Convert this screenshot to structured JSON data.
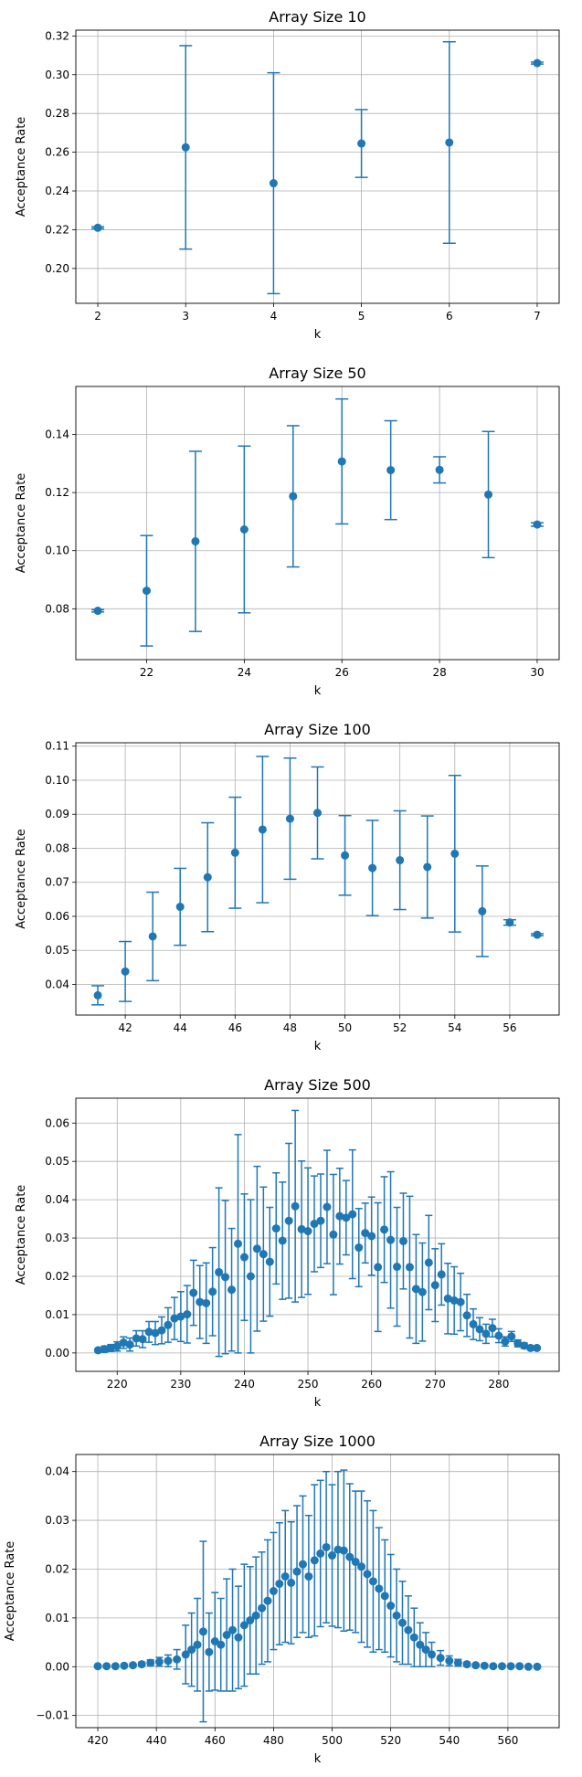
{
  "chart_data": [
    {
      "type": "scatter",
      "title": "Array Size 10",
      "xlabel": "k",
      "ylabel": "Acceptance Rate",
      "xlim": [
        1.75,
        7.25
      ],
      "ylim": [
        0.182,
        0.323
      ],
      "xticks": [
        2,
        3,
        4,
        5,
        6,
        7
      ],
      "yticks": [
        0.2,
        0.22,
        0.24,
        0.26,
        0.28,
        0.3,
        0.32
      ],
      "ytick_decimals": 2,
      "grid": true,
      "color": "#1f77b4",
      "points": [
        {
          "x": 2,
          "y": 0.221,
          "err": 0.0005
        },
        {
          "x": 3,
          "y": 0.2625,
          "err": 0.0525
        },
        {
          "x": 4,
          "y": 0.244,
          "err": 0.057
        },
        {
          "x": 5,
          "y": 0.2645,
          "err": 0.0175
        },
        {
          "x": 6,
          "y": 0.265,
          "err": 0.052
        },
        {
          "x": 7,
          "y": 0.306,
          "err": 0.0005
        }
      ]
    },
    {
      "type": "scatter",
      "title": "Array Size 50",
      "xlabel": "k",
      "ylabel": "Acceptance Rate",
      "xlim": [
        20.55,
        30.45
      ],
      "ylim": [
        0.0625,
        0.1565
      ],
      "xticks": [
        22,
        24,
        26,
        28,
        30
      ],
      "yticks": [
        0.08,
        0.1,
        0.12,
        0.14
      ],
      "ytick_decimals": 2,
      "grid": true,
      "color": "#1f77b4",
      "points": [
        {
          "x": 21,
          "y": 0.0793,
          "err": 0.0004
        },
        {
          "x": 22,
          "y": 0.0862,
          "err": 0.019
        },
        {
          "x": 23,
          "y": 0.1032,
          "err": 0.031
        },
        {
          "x": 24,
          "y": 0.1073,
          "err": 0.0287
        },
        {
          "x": 25,
          "y": 0.1187,
          "err": 0.0243
        },
        {
          "x": 26,
          "y": 0.1307,
          "err": 0.0215
        },
        {
          "x": 27,
          "y": 0.1277,
          "err": 0.017
        },
        {
          "x": 28,
          "y": 0.1278,
          "err": 0.0045
        },
        {
          "x": 29,
          "y": 0.1193,
          "err": 0.0217
        },
        {
          "x": 30,
          "y": 0.109,
          "err": 0.0006
        }
      ]
    },
    {
      "type": "scatter",
      "title": "Array Size 100",
      "xlabel": "k",
      "ylabel": "Acceptance Rate",
      "xlim": [
        40.2,
        57.8
      ],
      "ylim": [
        0.031,
        0.111
      ],
      "xticks": [
        42,
        44,
        46,
        48,
        50,
        52,
        54,
        56
      ],
      "yticks": [
        0.04,
        0.05,
        0.06,
        0.07,
        0.08,
        0.09,
        0.1,
        0.11
      ],
      "ytick_decimals": 2,
      "grid": true,
      "color": "#1f77b4",
      "points": [
        {
          "x": 41,
          "y": 0.0368,
          "err": 0.0028
        },
        {
          "x": 42,
          "y": 0.0438,
          "err": 0.0088
        },
        {
          "x": 43,
          "y": 0.0541,
          "err": 0.013
        },
        {
          "x": 44,
          "y": 0.0628,
          "err": 0.0113
        },
        {
          "x": 45,
          "y": 0.0715,
          "err": 0.016
        },
        {
          "x": 46,
          "y": 0.0787,
          "err": 0.0163
        },
        {
          "x": 47,
          "y": 0.0855,
          "err": 0.0215
        },
        {
          "x": 48,
          "y": 0.0887,
          "err": 0.0178
        },
        {
          "x": 49,
          "y": 0.0904,
          "err": 0.0135
        },
        {
          "x": 50,
          "y": 0.0779,
          "err": 0.0117
        },
        {
          "x": 51,
          "y": 0.0742,
          "err": 0.014
        },
        {
          "x": 52,
          "y": 0.0765,
          "err": 0.0145
        },
        {
          "x": 53,
          "y": 0.0745,
          "err": 0.015
        },
        {
          "x": 54,
          "y": 0.0784,
          "err": 0.023
        },
        {
          "x": 55,
          "y": 0.0615,
          "err": 0.0133
        },
        {
          "x": 56,
          "y": 0.0582,
          "err": 0.0008
        },
        {
          "x": 57,
          "y": 0.0546,
          "err": 0.0003
        }
      ]
    },
    {
      "type": "scatter",
      "title": "Array Size 500",
      "xlabel": "k",
      "ylabel": "Acceptance Rate",
      "xlim": [
        213.5,
        289.5
      ],
      "ylim": [
        -0.0048,
        0.0665
      ],
      "xticks": [
        220,
        230,
        240,
        250,
        260,
        270,
        280
      ],
      "yticks": [
        0.0,
        0.01,
        0.02,
        0.03,
        0.04,
        0.05,
        0.06
      ],
      "ytick_decimals": 2,
      "grid": true,
      "color": "#1f77b4",
      "points": [
        {
          "x": 217,
          "y": 0.0007,
          "err": 0.0004
        },
        {
          "x": 218,
          "y": 0.001,
          "err": 0.0008
        },
        {
          "x": 219,
          "y": 0.0013,
          "err": 0.0009
        },
        {
          "x": 220,
          "y": 0.0017,
          "err": 0.0012
        },
        {
          "x": 221,
          "y": 0.0027,
          "err": 0.0015
        },
        {
          "x": 222,
          "y": 0.0022,
          "err": 0.0017
        },
        {
          "x": 223,
          "y": 0.0038,
          "err": 0.002
        },
        {
          "x": 224,
          "y": 0.0036,
          "err": 0.0022
        },
        {
          "x": 225,
          "y": 0.0055,
          "err": 0.0027
        },
        {
          "x": 226,
          "y": 0.0052,
          "err": 0.003
        },
        {
          "x": 227,
          "y": 0.0059,
          "err": 0.0035
        },
        {
          "x": 228,
          "y": 0.0073,
          "err": 0.0045
        },
        {
          "x": 229,
          "y": 0.009,
          "err": 0.0055
        },
        {
          "x": 230,
          "y": 0.0095,
          "err": 0.0065
        },
        {
          "x": 231,
          "y": 0.0101,
          "err": 0.0075
        },
        {
          "x": 232,
          "y": 0.0157,
          "err": 0.0085
        },
        {
          "x": 233,
          "y": 0.0133,
          "err": 0.0095
        },
        {
          "x": 234,
          "y": 0.013,
          "err": 0.0105
        },
        {
          "x": 235,
          "y": 0.016,
          "err": 0.0115
        },
        {
          "x": 236,
          "y": 0.0211,
          "err": 0.022
        },
        {
          "x": 237,
          "y": 0.0198,
          "err": 0.02
        },
        {
          "x": 238,
          "y": 0.0165,
          "err": 0.016
        },
        {
          "x": 239,
          "y": 0.0285,
          "err": 0.0285
        },
        {
          "x": 240,
          "y": 0.025,
          "err": 0.0165
        },
        {
          "x": 241,
          "y": 0.02,
          "err": 0.02
        },
        {
          "x": 242,
          "y": 0.0272,
          "err": 0.0215
        },
        {
          "x": 243,
          "y": 0.0258,
          "err": 0.0175
        },
        {
          "x": 244,
          "y": 0.0238,
          "err": 0.0142
        },
        {
          "x": 245,
          "y": 0.0325,
          "err": 0.0145
        },
        {
          "x": 246,
          "y": 0.0293,
          "err": 0.0153
        },
        {
          "x": 247,
          "y": 0.0345,
          "err": 0.0202
        },
        {
          "x": 248,
          "y": 0.0383,
          "err": 0.025
        },
        {
          "x": 249,
          "y": 0.0323,
          "err": 0.0178
        },
        {
          "x": 250,
          "y": 0.0318,
          "err": 0.0165
        },
        {
          "x": 251,
          "y": 0.0337,
          "err": 0.0125
        },
        {
          "x": 252,
          "y": 0.0345,
          "err": 0.0122
        },
        {
          "x": 253,
          "y": 0.0381,
          "err": 0.0148
        },
        {
          "x": 254,
          "y": 0.0309,
          "err": 0.0157
        },
        {
          "x": 255,
          "y": 0.0357,
          "err": 0.0125
        },
        {
          "x": 256,
          "y": 0.0353,
          "err": 0.0097
        },
        {
          "x": 257,
          "y": 0.0362,
          "err": 0.0168
        },
        {
          "x": 258,
          "y": 0.0275,
          "err": 0.0102
        },
        {
          "x": 259,
          "y": 0.0313,
          "err": 0.0078
        },
        {
          "x": 260,
          "y": 0.0305,
          "err": 0.0102
        },
        {
          "x": 261,
          "y": 0.0224,
          "err": 0.0168
        },
        {
          "x": 262,
          "y": 0.0322,
          "err": 0.0138
        },
        {
          "x": 263,
          "y": 0.0295,
          "err": 0.0178
        },
        {
          "x": 264,
          "y": 0.0225,
          "err": 0.0155
        },
        {
          "x": 265,
          "y": 0.0292,
          "err": 0.0125
        },
        {
          "x": 266,
          "y": 0.0224,
          "err": 0.0185
        },
        {
          "x": 267,
          "y": 0.0167,
          "err": 0.0142
        },
        {
          "x": 268,
          "y": 0.0159,
          "err": 0.0128
        },
        {
          "x": 269,
          "y": 0.0236,
          "err": 0.0123
        },
        {
          "x": 270,
          "y": 0.0177,
          "err": 0.0095
        },
        {
          "x": 271,
          "y": 0.0205,
          "err": 0.008
        },
        {
          "x": 272,
          "y": 0.0142,
          "err": 0.0092
        },
        {
          "x": 273,
          "y": 0.0137,
          "err": 0.0088
        },
        {
          "x": 274,
          "y": 0.0133,
          "err": 0.0075
        },
        {
          "x": 275,
          "y": 0.0098,
          "err": 0.0055
        },
        {
          "x": 276,
          "y": 0.0075,
          "err": 0.004
        },
        {
          "x": 277,
          "y": 0.0062,
          "err": 0.003
        },
        {
          "x": 278,
          "y": 0.005,
          "err": 0.0025
        },
        {
          "x": 279,
          "y": 0.0065,
          "err": 0.0023
        },
        {
          "x": 280,
          "y": 0.0045,
          "err": 0.0018
        },
        {
          "x": 281,
          "y": 0.003,
          "err": 0.0012
        },
        {
          "x": 282,
          "y": 0.0043,
          "err": 0.0013
        },
        {
          "x": 283,
          "y": 0.0025,
          "err": 0.0009
        },
        {
          "x": 284,
          "y": 0.0019,
          "err": 0.0007
        },
        {
          "x": 285,
          "y": 0.0013,
          "err": 0.0005
        },
        {
          "x": 286,
          "y": 0.0013,
          "err": 0.0004
        }
      ]
    },
    {
      "type": "scatter",
      "title": "Array Size 1000",
      "xlabel": "k",
      "ylabel": "Acceptance Rate",
      "xlim": [
        412.5,
        577.5
      ],
      "ylim": [
        -0.0125,
        0.0435
      ],
      "xticks": [
        420,
        440,
        460,
        480,
        500,
        520,
        540,
        560
      ],
      "yticks": [
        -0.01,
        0.0,
        0.01,
        0.02,
        0.03,
        0.04
      ],
      "ytick_decimals": 2,
      "grid": true,
      "color": "#1f77b4",
      "points": [
        {
          "x": 420,
          "y": 0.0001,
          "err": 0.0001
        },
        {
          "x": 423,
          "y": 0.0001,
          "err": 0.0001
        },
        {
          "x": 426,
          "y": 0.0001,
          "err": 0.0001
        },
        {
          "x": 429,
          "y": 0.0002,
          "err": 0.0002
        },
        {
          "x": 432,
          "y": 0.0003,
          "err": 0.0003
        },
        {
          "x": 435,
          "y": 0.0005,
          "err": 0.0004
        },
        {
          "x": 438,
          "y": 0.0008,
          "err": 0.0006
        },
        {
          "x": 441,
          "y": 0.001,
          "err": 0.0009
        },
        {
          "x": 444,
          "y": 0.0012,
          "err": 0.0012
        },
        {
          "x": 447,
          "y": 0.0015,
          "err": 0.002
        },
        {
          "x": 450,
          "y": 0.0025,
          "err": 0.006
        },
        {
          "x": 452,
          "y": 0.0035,
          "err": 0.0075
        },
        {
          "x": 454,
          "y": 0.0045,
          "err": 0.0095
        },
        {
          "x": 456,
          "y": 0.0072,
          "err": 0.0185
        },
        {
          "x": 458,
          "y": 0.003,
          "err": 0.008
        },
        {
          "x": 460,
          "y": 0.0052,
          "err": 0.01
        },
        {
          "x": 462,
          "y": 0.0045,
          "err": 0.0095
        },
        {
          "x": 464,
          "y": 0.0065,
          "err": 0.0115
        },
        {
          "x": 466,
          "y": 0.0075,
          "err": 0.0125
        },
        {
          "x": 468,
          "y": 0.006,
          "err": 0.0105
        },
        {
          "x": 470,
          "y": 0.0085,
          "err": 0.0125
        },
        {
          "x": 472,
          "y": 0.0095,
          "err": 0.011
        },
        {
          "x": 474,
          "y": 0.0105,
          "err": 0.012
        },
        {
          "x": 476,
          "y": 0.012,
          "err": 0.0115
        },
        {
          "x": 478,
          "y": 0.0135,
          "err": 0.0125
        },
        {
          "x": 480,
          "y": 0.0155,
          "err": 0.012
        },
        {
          "x": 482,
          "y": 0.017,
          "err": 0.0125
        },
        {
          "x": 484,
          "y": 0.0185,
          "err": 0.0135
        },
        {
          "x": 486,
          "y": 0.0172,
          "err": 0.0125
        },
        {
          "x": 488,
          "y": 0.0195,
          "err": 0.0135
        },
        {
          "x": 490,
          "y": 0.021,
          "err": 0.014
        },
        {
          "x": 492,
          "y": 0.0185,
          "err": 0.0125
        },
        {
          "x": 494,
          "y": 0.0218,
          "err": 0.0155
        },
        {
          "x": 496,
          "y": 0.0232,
          "err": 0.015
        },
        {
          "x": 498,
          "y": 0.0245,
          "err": 0.0155
        },
        {
          "x": 500,
          "y": 0.0228,
          "err": 0.0145
        },
        {
          "x": 502,
          "y": 0.024,
          "err": 0.016
        },
        {
          "x": 504,
          "y": 0.0238,
          "err": 0.0165
        },
        {
          "x": 506,
          "y": 0.0225,
          "err": 0.015
        },
        {
          "x": 508,
          "y": 0.0215,
          "err": 0.0145
        },
        {
          "x": 510,
          "y": 0.0205,
          "err": 0.0155
        },
        {
          "x": 512,
          "y": 0.019,
          "err": 0.015
        },
        {
          "x": 514,
          "y": 0.0175,
          "err": 0.0145
        },
        {
          "x": 516,
          "y": 0.016,
          "err": 0.0125
        },
        {
          "x": 518,
          "y": 0.0145,
          "err": 0.0115
        },
        {
          "x": 520,
          "y": 0.0125,
          "err": 0.0105
        },
        {
          "x": 522,
          "y": 0.0105,
          "err": 0.0095
        },
        {
          "x": 524,
          "y": 0.009,
          "err": 0.0085
        },
        {
          "x": 526,
          "y": 0.0075,
          "err": 0.007
        },
        {
          "x": 528,
          "y": 0.006,
          "err": 0.006
        },
        {
          "x": 530,
          "y": 0.0045,
          "err": 0.0045
        },
        {
          "x": 532,
          "y": 0.0035,
          "err": 0.0035
        },
        {
          "x": 534,
          "y": 0.0025,
          "err": 0.0025
        },
        {
          "x": 537,
          "y": 0.0018,
          "err": 0.0015
        },
        {
          "x": 540,
          "y": 0.0012,
          "err": 0.001
        },
        {
          "x": 543,
          "y": 0.0008,
          "err": 0.0007
        },
        {
          "x": 546,
          "y": 0.0005,
          "err": 0.0004
        },
        {
          "x": 549,
          "y": 0.0003,
          "err": 0.0003
        },
        {
          "x": 552,
          "y": 0.0002,
          "err": 0.0002
        },
        {
          "x": 555,
          "y": 0.0001,
          "err": 0.0001
        },
        {
          "x": 558,
          "y": 0.0001,
          "err": 0.0001
        },
        {
          "x": 561,
          "y": 0.0001,
          "err": 0.0001
        },
        {
          "x": 564,
          "y": 0.0001,
          "err": 0.0001
        },
        {
          "x": 567,
          "y": 0.0,
          "err": 0.0001
        },
        {
          "x": 570,
          "y": 0.0,
          "err": 0.0001
        }
      ]
    }
  ]
}
